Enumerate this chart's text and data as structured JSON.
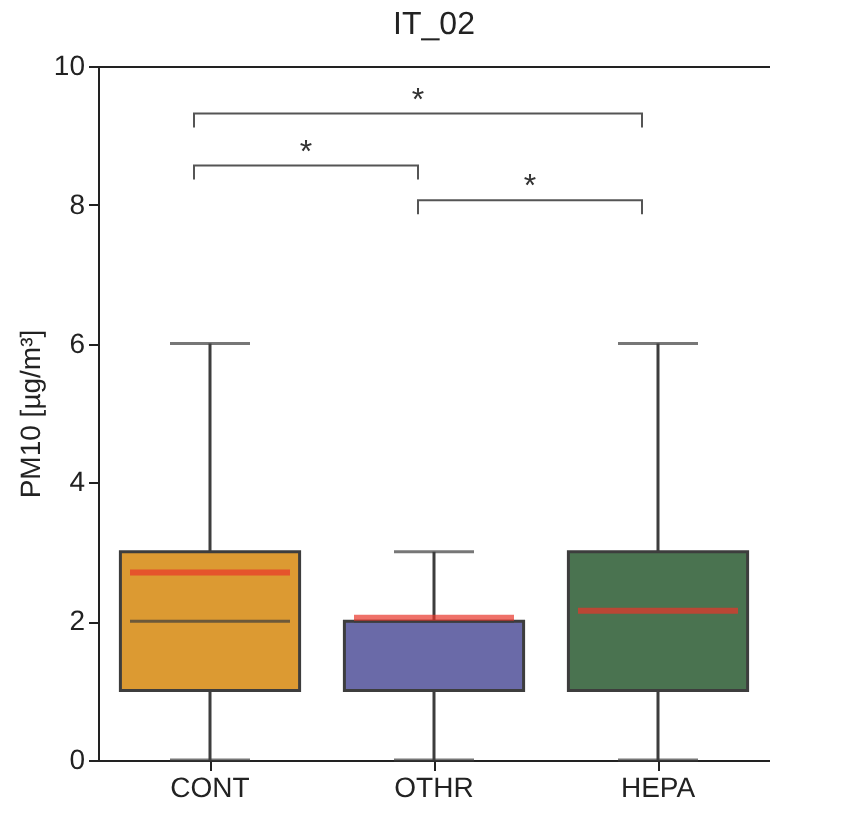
{
  "chart_data": {
    "type": "box",
    "title": "IT_02",
    "ylabel": "PM10 [µg/m³]",
    "categories": [
      "CONT",
      "OTHR",
      "HEPA"
    ],
    "colors": [
      "#dc9a32",
      "#6a6aa8",
      "#4a7350"
    ],
    "boxes": [
      {
        "low": 0,
        "q1": 1,
        "median": 2,
        "q3": 3,
        "high": 6,
        "mean": 2.7
      },
      {
        "low": 0,
        "q1": 1,
        "median": 2,
        "q3": 2,
        "high": 3,
        "mean": 2.05
      },
      {
        "low": 0,
        "q1": 1,
        "median": 1,
        "q3": 3,
        "high": 6,
        "mean": 2.15
      }
    ],
    "ylim": [
      0,
      10
    ],
    "yticks": [
      0,
      2,
      4,
      6,
      8,
      10
    ],
    "annotations": [
      "*",
      "*",
      "*"
    ]
  }
}
